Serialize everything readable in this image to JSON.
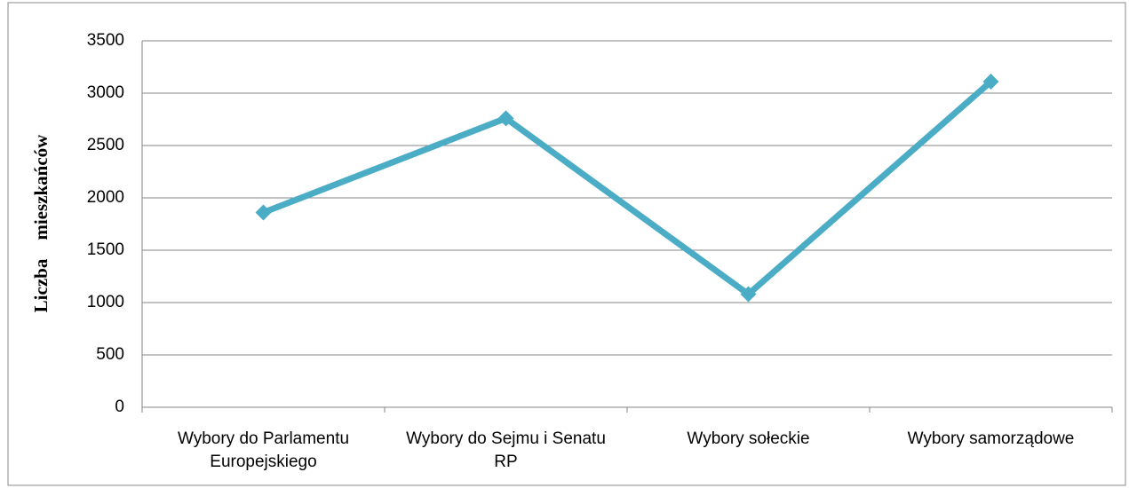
{
  "chart_data": {
    "type": "line",
    "y_label": "Liczba    mieszkańców",
    "categories": [
      "Wybory do Parlamentu Europejskiego",
      "Wybory do Sejmu i Senatu RP",
      "Wybory sołeckie",
      "Wybory samorządowe"
    ],
    "series": [
      {
        "name": "Liczba mieszkańców",
        "color": "#4bacc6",
        "values": [
          1860,
          2760,
          1080,
          3110
        ]
      }
    ],
    "ylim": [
      0,
      3500
    ],
    "yticks": [
      0,
      500,
      1000,
      1500,
      2000,
      2500,
      3000,
      3500
    ],
    "grid": true
  }
}
